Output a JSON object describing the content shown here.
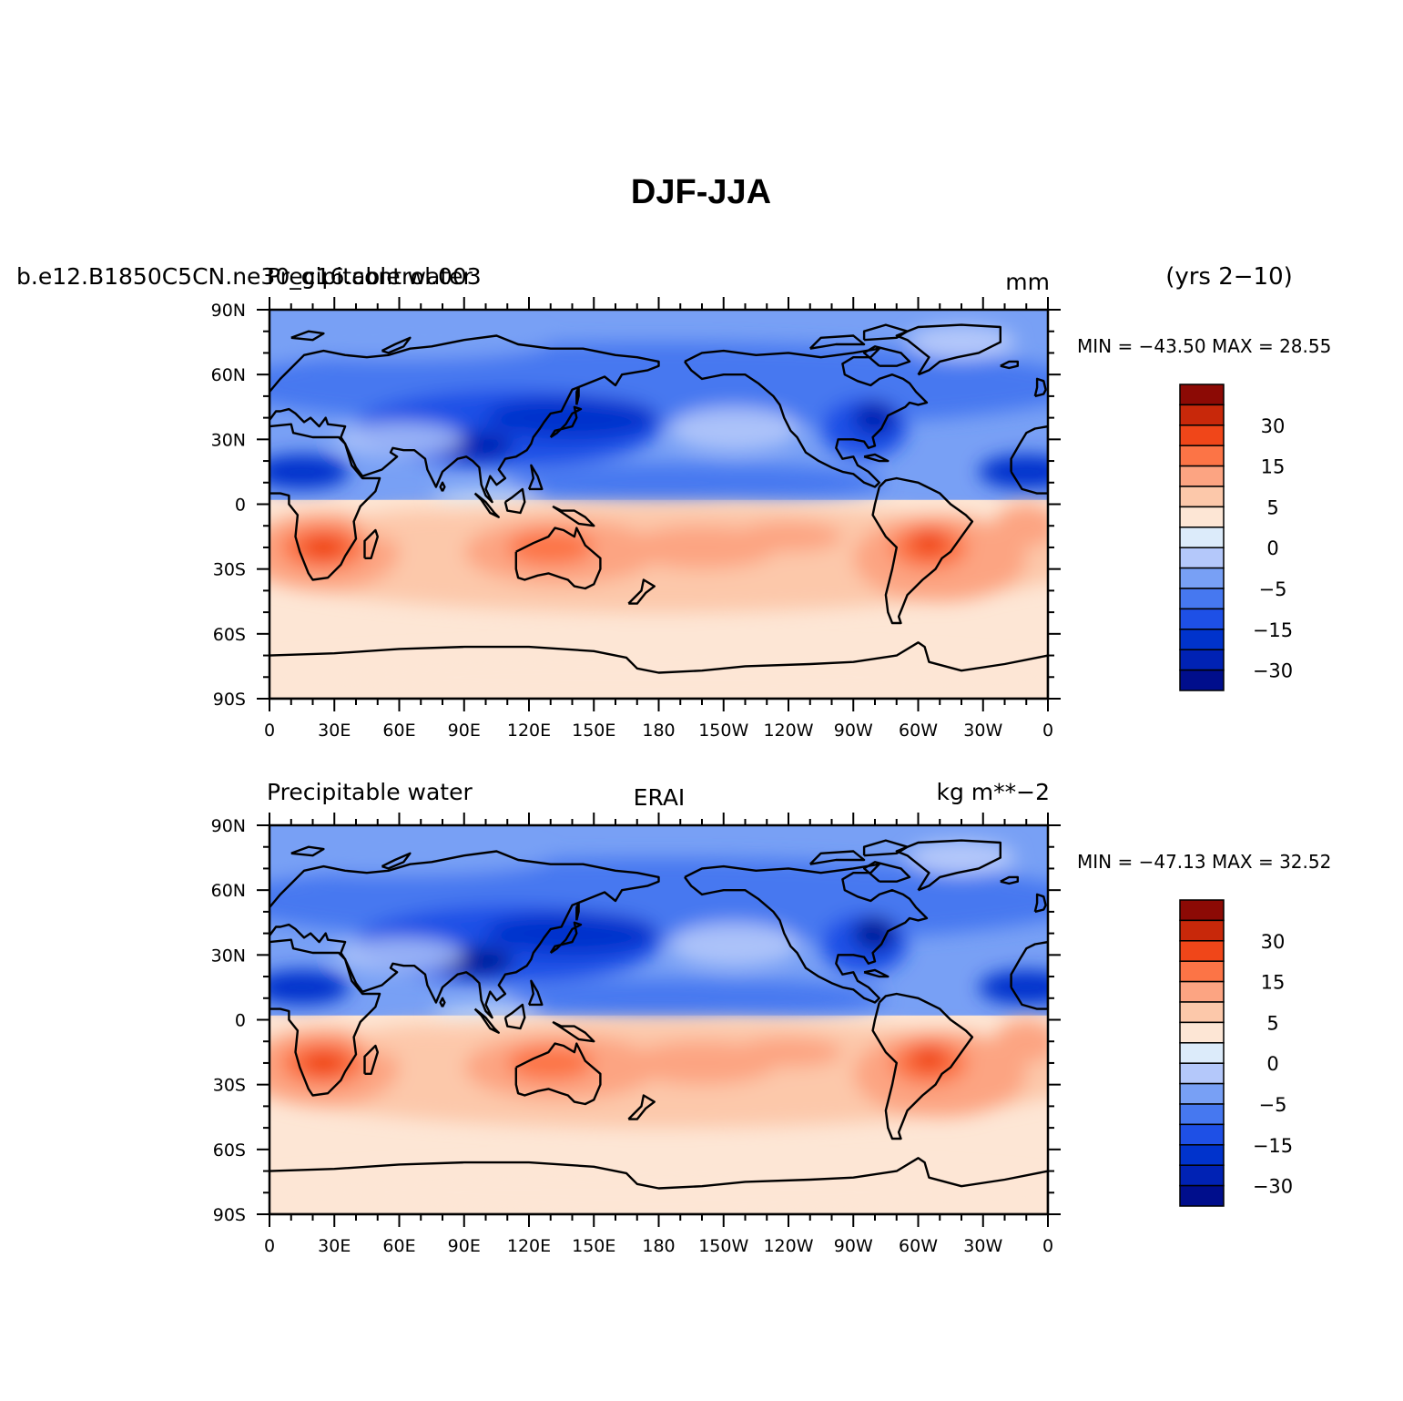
{
  "figure": {
    "title": "DJF-JJA"
  },
  "panels": [
    {
      "id": "model",
      "left_label": "b.e12.B1850C5CN.ne30_g16.control.003",
      "left_label_overlay": "Precipitable water",
      "center_label": "",
      "right_label": "mm",
      "years_label": "(yrs 2−10)",
      "stats": "MIN = −43.50  MAX =  28.55",
      "blue_theme": "model"
    },
    {
      "id": "obs",
      "left_label": "Precipitable water",
      "left_label_overlay": "",
      "center_label": "ERAI",
      "right_label": "kg m**−2",
      "years_label": "",
      "stats": "MIN = −47.13  MAX =  32.52",
      "blue_theme": "obs"
    }
  ],
  "chart_data": {
    "type": "map",
    "projection": "cylindrical-equidistant",
    "lon_range": [
      0,
      360
    ],
    "lat_range": [
      -90,
      90
    ],
    "lon_ticks": [
      "0",
      "30E",
      "60E",
      "90E",
      "120E",
      "150E",
      "180",
      "150W",
      "120W",
      "90W",
      "60W",
      "30W",
      "0"
    ],
    "lat_ticks": [
      "90N",
      "60N",
      "30N",
      "0",
      "30S",
      "60S",
      "90S"
    ],
    "colorbar": {
      "levels": [
        -40,
        -30,
        -20,
        -15,
        -10,
        -5,
        -2,
        0,
        2,
        5,
        10,
        15,
        20,
        30,
        40
      ],
      "labels": [
        "−30",
        "−15",
        "−5",
        "0",
        "5",
        "15",
        "30"
      ],
      "colors": [
        "#000e8c",
        "#0022b4",
        "#0033cc",
        "#1e50e6",
        "#4678f0",
        "#78a0f5",
        "#b4c8fa",
        "#dcebfa",
        "#fde6d5",
        "#fcc8aa",
        "#fca482",
        "#fc7446",
        "#f04619",
        "#c8280a",
        "#8c0a05"
      ]
    }
  }
}
